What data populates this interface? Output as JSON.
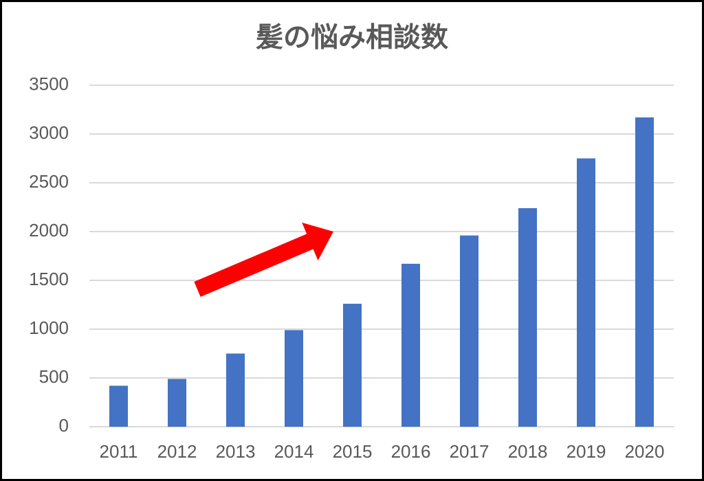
{
  "chart_data": {
    "type": "bar",
    "title": "髪の悩み相談数",
    "categories": [
      "2011",
      "2012",
      "2013",
      "2014",
      "2015",
      "2016",
      "2017",
      "2018",
      "2019",
      "2020"
    ],
    "values": [
      420,
      490,
      750,
      990,
      1260,
      1670,
      1960,
      2240,
      2750,
      3170
    ],
    "color": "#4472c4",
    "ylim": [
      0,
      3500
    ],
    "yticks": [
      0,
      500,
      1000,
      1500,
      2000,
      2500,
      3000,
      3500
    ],
    "grid": true
  }
}
